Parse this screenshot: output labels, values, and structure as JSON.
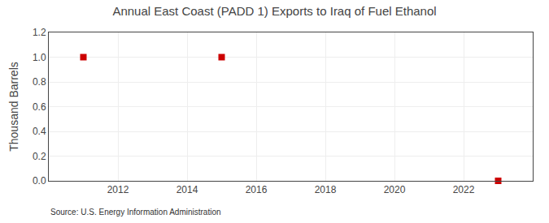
{
  "chart_data": {
    "type": "scatter",
    "title": "Annual East Coast (PADD 1) Exports to Iraq of Fuel Ethanol",
    "ylabel": "Thousand Barrels",
    "source": "Source: U.S. Energy Information Administration",
    "x": [
      2011,
      2015,
      2023
    ],
    "values": [
      1.0,
      1.0,
      0.0
    ],
    "color": "#cc0000",
    "marker": "square",
    "xlim": [
      2010,
      2024
    ],
    "xticks": [
      2012,
      2014,
      2016,
      2018,
      2020,
      2022
    ],
    "ylim": [
      0,
      1.2
    ],
    "yticks": [
      {
        "value": 0,
        "label": "0.0"
      },
      0.2,
      0.4,
      0.6,
      0.8,
      {
        "value": 1,
        "label": "1.0"
      },
      1.2
    ],
    "grid": true
  }
}
